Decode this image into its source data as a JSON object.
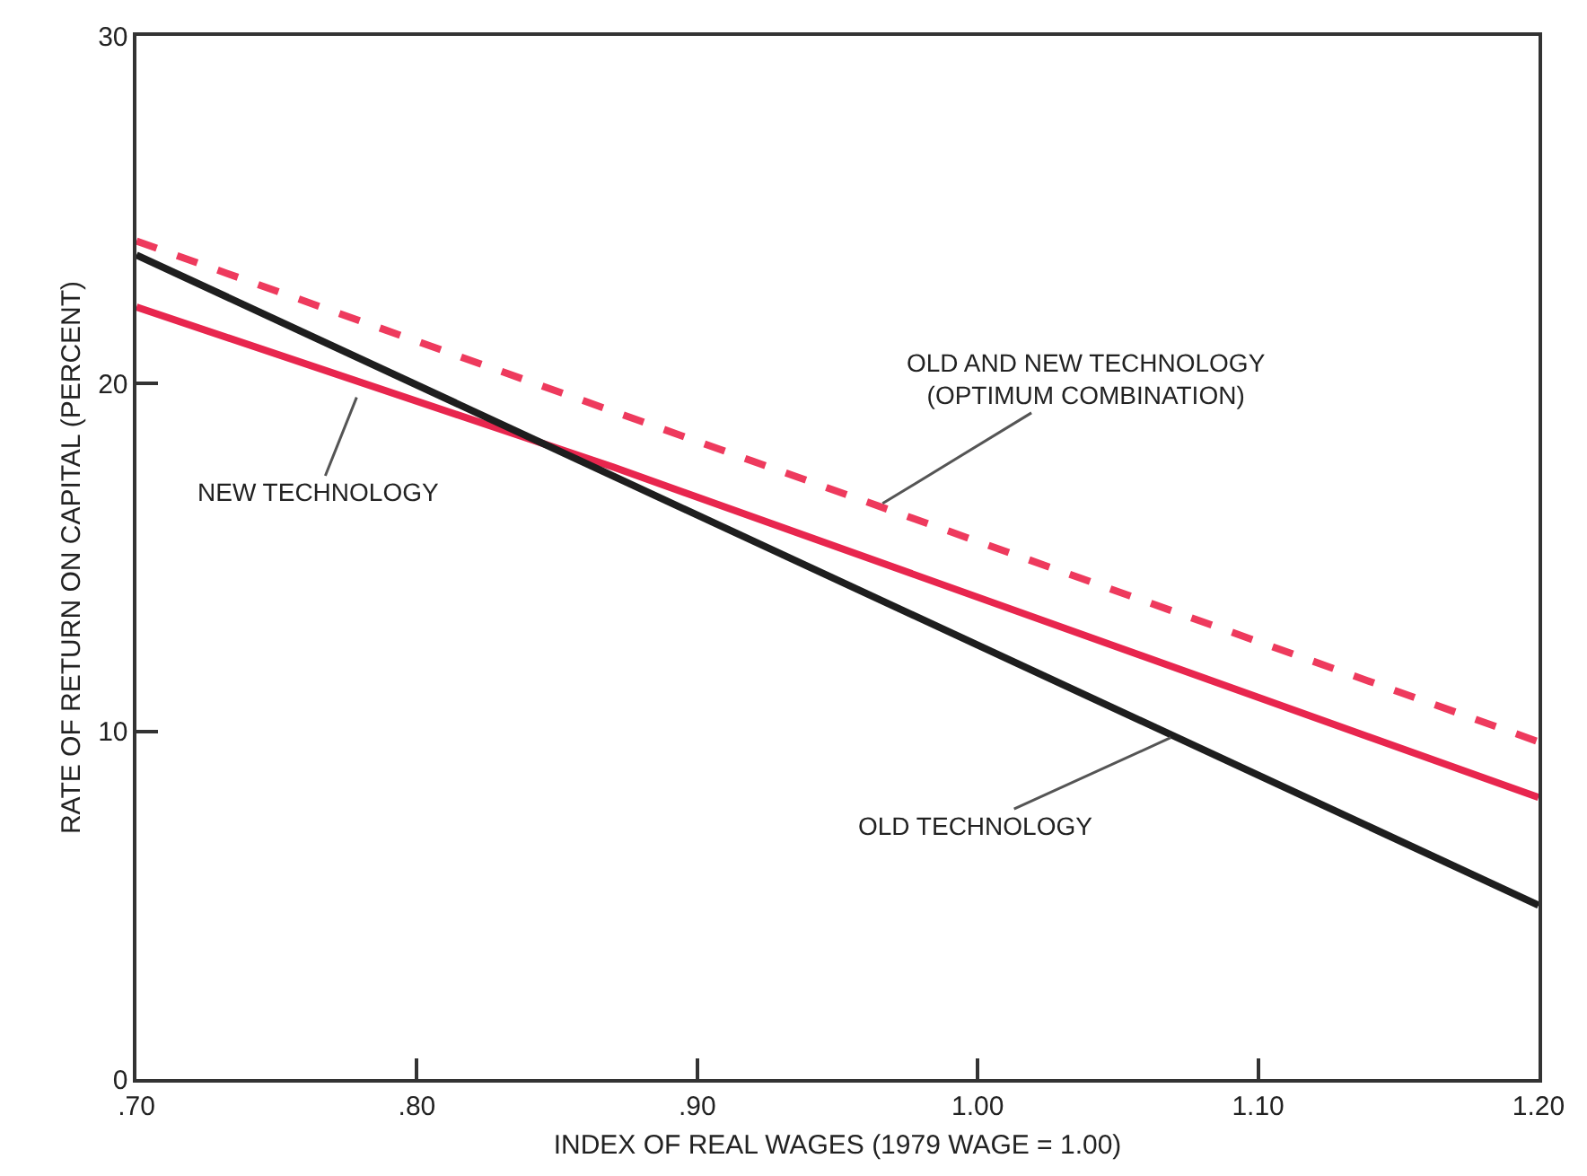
{
  "chart_data": {
    "type": "line",
    "xlabel": "INDEX OF REAL WAGES (1979 WAGE = 1.00)",
    "ylabel": "RATE OF RETURN ON CAPITAL (PERCENT)",
    "xlim": [
      0.7,
      1.2
    ],
    "xticks": [
      {
        "value": 0.7,
        "label": ".70"
      },
      {
        "value": 0.8,
        "label": ".80"
      },
      {
        "value": 0.9,
        "label": ".90"
      },
      {
        "value": 1.0,
        "label": "1.00"
      },
      {
        "value": 1.1,
        "label": "1.10"
      },
      {
        "value": 1.2,
        "label": "1.20"
      }
    ],
    "ylim": [
      0,
      30
    ],
    "yticks": [
      0,
      10,
      20,
      30
    ],
    "marker": "none",
    "series": [
      {
        "color": "#ee3a5d",
        "line_style": "dashed",
        "x": [
          0.7,
          1.2
        ],
        "values": [
          24.1,
          9.7
        ]
      },
      {
        "color": "#e8264e",
        "line_style": "solid",
        "x": [
          0.7,
          0.87,
          1.2
        ],
        "values": [
          22.2,
          17.6,
          8.1
        ]
      },
      {
        "color": "#1e1e1e",
        "line_style": "solid",
        "x": [
          0.7,
          1.2
        ],
        "values": [
          23.7,
          5.0
        ]
      }
    ],
    "annotations": [
      {
        "text": "NEW TECHNOLOGY",
        "x": 0.779,
        "y": 19.7
      },
      {
        "text": "OLD AND NEW TECHNOLOGY\n(OPTIMUM COMBINATION)",
        "x": 0.965,
        "y": 16.5
      },
      {
        "text": "OLD TECHNOLOGY",
        "x": 1.07,
        "y": 9.86
      }
    ]
  }
}
